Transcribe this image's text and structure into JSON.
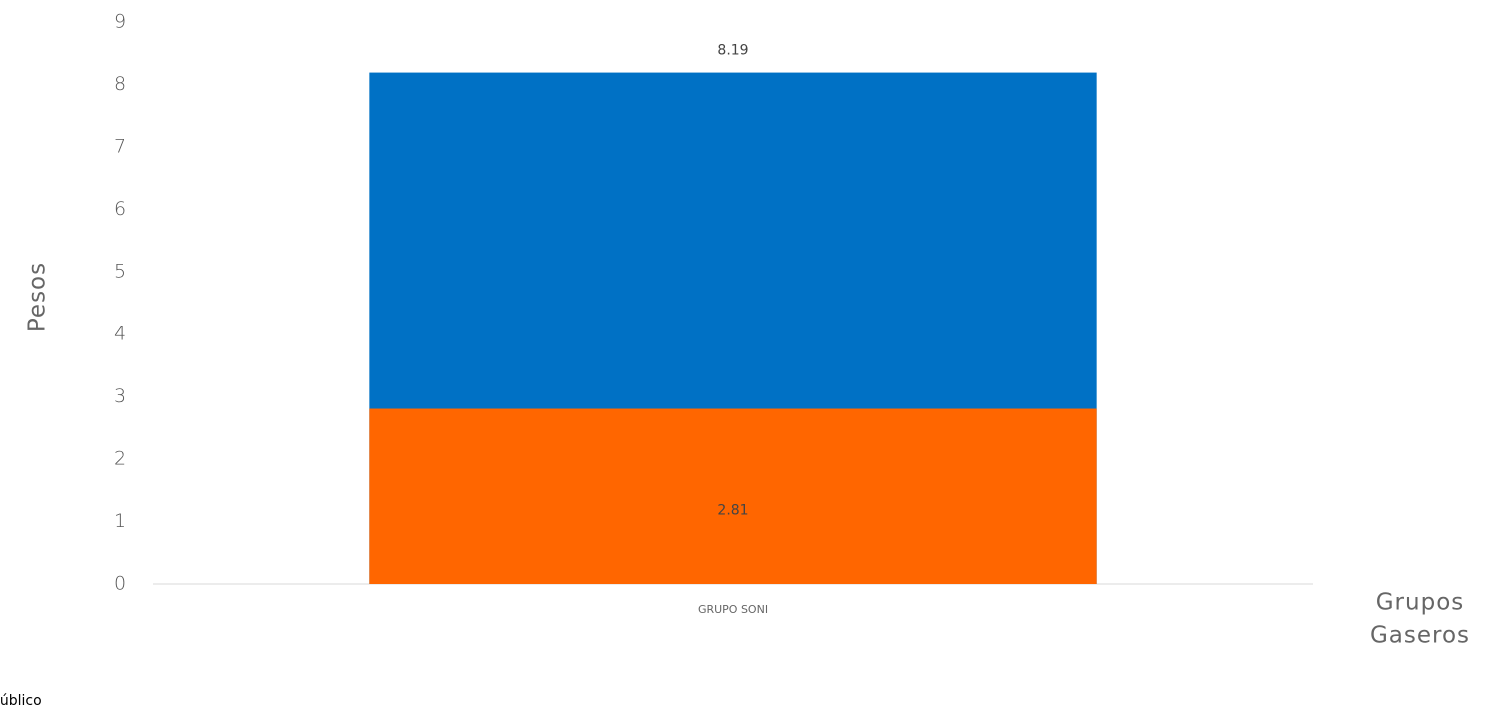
{
  "chart_data": {
    "type": "bar",
    "categories": [
      "GRUPO SONI"
    ],
    "series": [
      {
        "color": "#0071c5",
        "values": [
          8.19
        ]
      },
      {
        "color": "#ff6600",
        "values": [
          2.81
        ]
      }
    ],
    "ylabel": "Pesos",
    "xlabel": [
      "Grupos",
      "Gaseros"
    ],
    "ylim": [
      0,
      9
    ],
    "yticks": [
      0,
      1,
      2,
      3,
      4,
      5,
      6,
      7,
      8,
      9
    ],
    "grid": false,
    "footer": "público"
  }
}
